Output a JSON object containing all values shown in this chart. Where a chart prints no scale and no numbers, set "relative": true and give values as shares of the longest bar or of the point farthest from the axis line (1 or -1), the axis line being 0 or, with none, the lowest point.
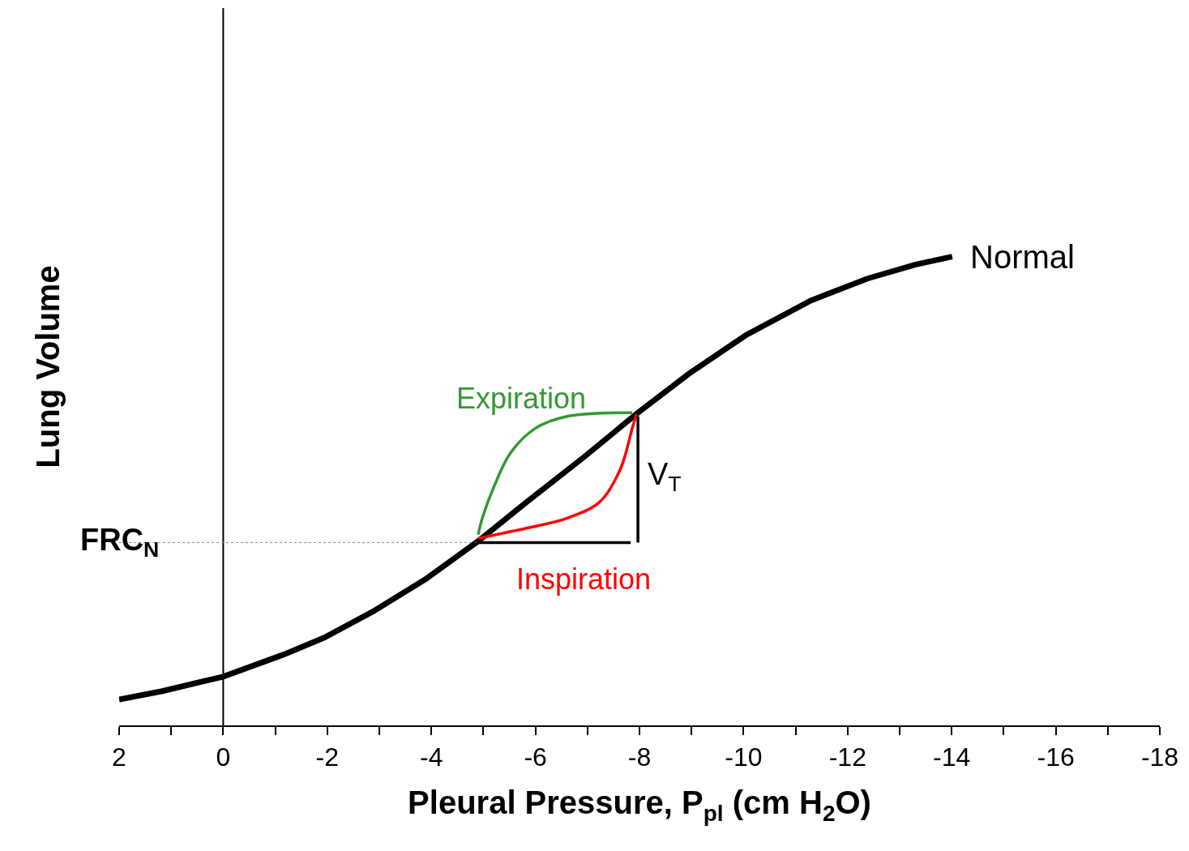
{
  "chart_data": {
    "type": "line",
    "relative": true,
    "xlabel": "Pleural Pressure, P$_{pl}$ (cm H$_{2}$O)",
    "ylabel": "Lung Volume",
    "xlim": [
      2,
      -18
    ],
    "xticks": [
      2,
      {
        "value": 1,
        "label": null
      },
      0,
      {
        "value": -1,
        "label": null
      },
      -2,
      {
        "value": -3,
        "label": null
      },
      -4,
      {
        "value": -5,
        "label": null
      },
      -6,
      {
        "value": -7,
        "label": null
      },
      -8,
      {
        "value": -9,
        "label": null
      },
      -10,
      {
        "value": -11,
        "label": null
      },
      -12,
      {
        "value": -13,
        "label": null
      },
      -14,
      {
        "value": -15,
        "label": null
      },
      -16,
      {
        "value": -17,
        "label": null
      },
      -18
    ],
    "grid": false,
    "legend": false,
    "marker": "none",
    "series": [
      {
        "name": "Normal",
        "color": "#000000",
        "x": [
          2,
          1.17,
          0,
          -1.16,
          -1.94,
          -2.88,
          -3.89,
          -4.9,
          -5.84,
          -6.93,
          -7.97,
          -8.95,
          -10.04,
          -11.29,
          -12.38,
          -13.31,
          -14.01
        ],
        "values": [
          0.055,
          0.073,
          0.104,
          0.151,
          0.187,
          0.243,
          0.312,
          0.393,
          0.477,
          0.572,
          0.667,
          0.75,
          0.832,
          0.906,
          0.953,
          0.983,
          1.0
        ]
      },
      {
        "name": "Expiration",
        "color": "#339933",
        "x": [
          -7.86,
          -6.61,
          -5.99,
          -5.52,
          -5.21,
          -4.98,
          -4.9
        ],
        "values": [
          0.667,
          0.659,
          0.633,
          0.581,
          0.511,
          0.442,
          0.407
        ]
      },
      {
        "name": "Inspiration",
        "color": "#ff0000",
        "x": [
          -4.9,
          -5.84,
          -6.61,
          -7.24,
          -7.63,
          -7.86,
          -7.94
        ],
        "values": [
          0.399,
          0.421,
          0.442,
          0.477,
          0.546,
          0.633,
          0.664
        ]
      },
      {
        "color": "#000000",
        "x": [
          -4.9,
          -7.83,
          null,
          -7.97,
          -7.97
        ],
        "values": [
          0.39,
          0.39,
          null,
          0.39,
          0.659
        ]
      }
    ],
    "ref_lines": [
      {
        "axis": "x",
        "value": 0,
        "color": "#000000",
        "line_style": "solid"
      },
      {
        "axis": "y",
        "value": 0.39,
        "label": "FRC$_{N}$",
        "color": "#888888",
        "line_style": "dotted"
      }
    ],
    "annotations": [
      {
        "text": "V$_{T}$",
        "x": -7.97,
        "y": 0.53
      }
    ]
  }
}
